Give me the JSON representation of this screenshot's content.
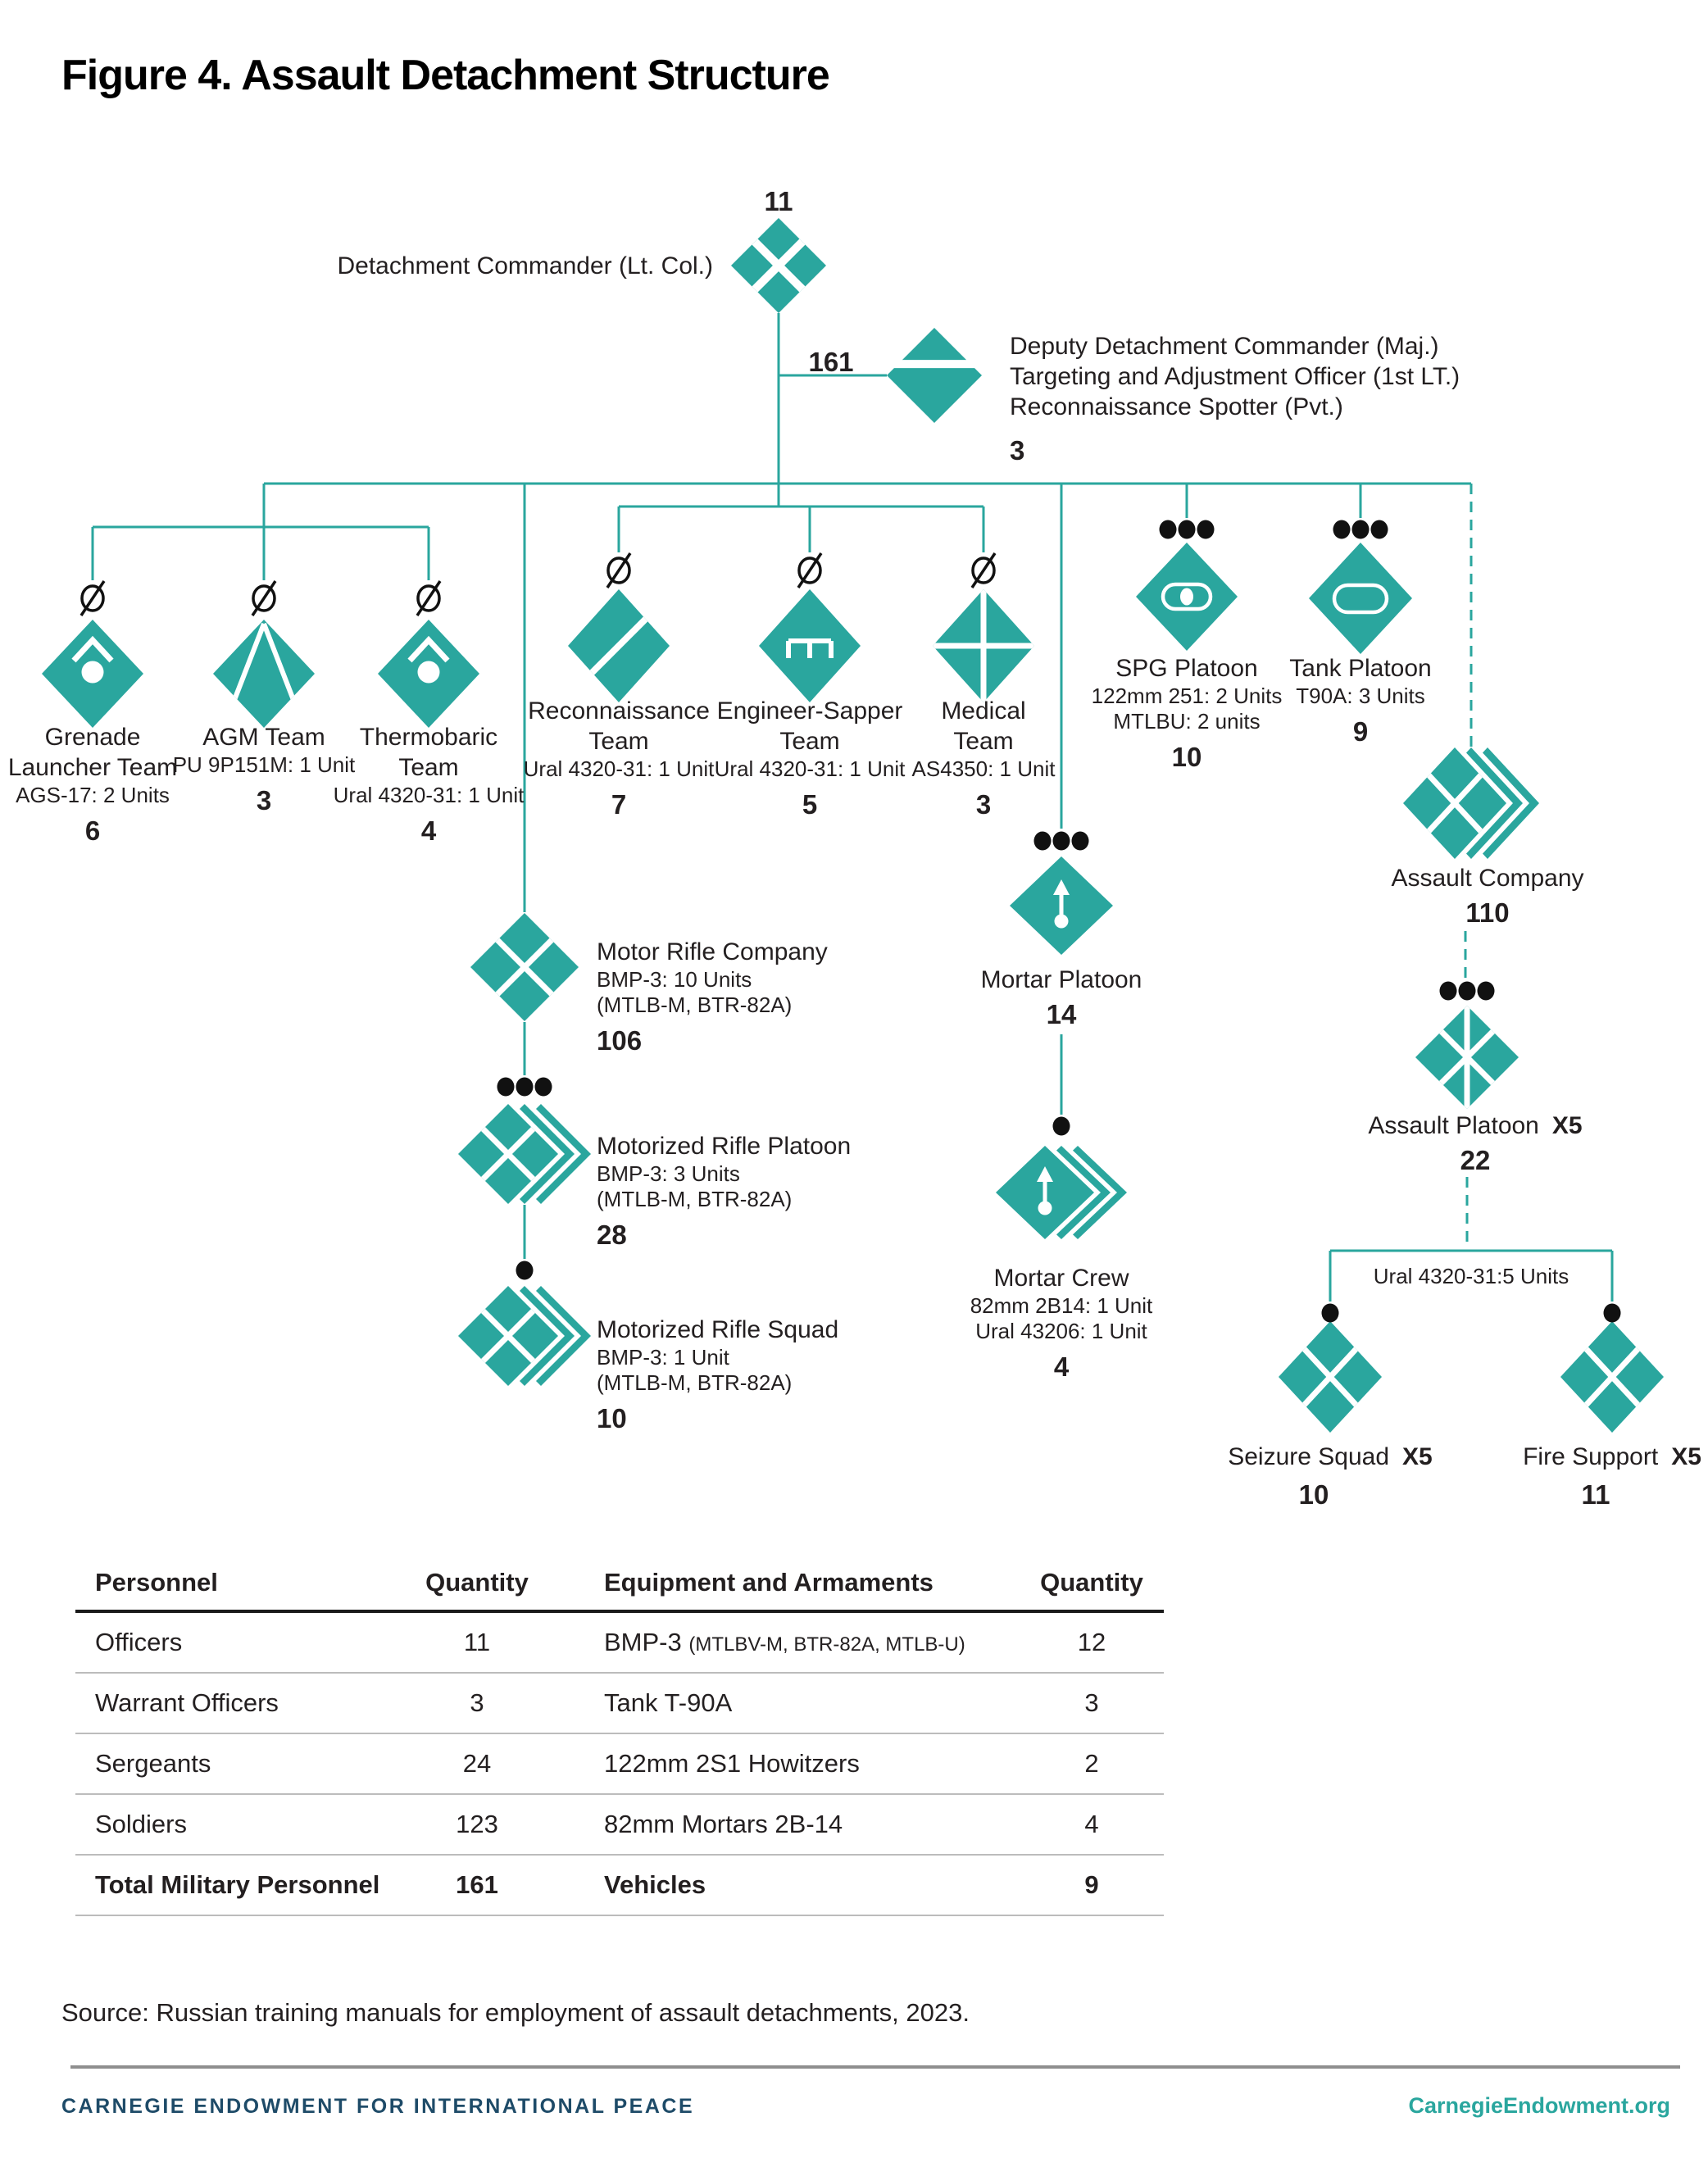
{
  "title": "Figure 4. Assault Detachment Structure",
  "colors": {
    "teal": "#2AA69E",
    "navy": "#1E4B68",
    "black": "#231F20"
  },
  "icons": [
    "hq-icon",
    "deputy-split-icon",
    "prohibited-icon",
    "grenade-team-icon",
    "agm-team-icon",
    "thermobaric-team-icon",
    "recon-slash-icon",
    "engineer-icon",
    "medical-cross-icon",
    "spg-icon",
    "tank-icon",
    "infantry-x-icon",
    "mortar-arrow-icon",
    "assault-six-icon",
    "stacked-unit-chevrons",
    "echelon-dots"
  ],
  "chart": {
    "commander": {
      "count": "11",
      "label": "Detachment Commander (Lt. Col.)"
    },
    "link_count": "161",
    "deputy": {
      "line1": "Deputy Detachment Commander (Maj.)",
      "line2": "Targeting and Adjustment Officer (1st LT.)",
      "line3": "Reconnaissance Spotter (Pvt.)",
      "count": "3"
    },
    "units": {
      "grenade": {
        "name1": "Grenade",
        "name2": "Launcher Team",
        "sub1": "AGS-17: 2 Units",
        "count": "6"
      },
      "agm": {
        "name1": "AGM Team",
        "sub1": "PU 9P151M: 1 Unit",
        "count": "3"
      },
      "thermobaric": {
        "name1": "Thermobaric",
        "name2": "Team",
        "sub1": "Ural 4320-31: 1 Unit",
        "count": "4"
      },
      "recon": {
        "name1": "Reconnaissance",
        "name2": "Team",
        "sub1": "Ural 4320-31: 1 Unit",
        "count": "7"
      },
      "engineer": {
        "name1": "Engineer-Sapper",
        "name2": "Team",
        "sub1": "Ural 4320-31: 1 Unit",
        "count": "5"
      },
      "medical": {
        "name1": "Medical",
        "name2": "Team",
        "sub1": "AS4350: 1 Unit",
        "count": "3"
      },
      "spg": {
        "name1": "SPG Platoon",
        "sub1": "122mm 251: 2 Units",
        "sub2": "MTLBU: 2 units",
        "count": "10"
      },
      "tank": {
        "name1": "Tank Platoon",
        "sub1": "T90A: 3 Units",
        "count": "9"
      },
      "motor_company": {
        "name1": "Motor Rifle Company",
        "sub1": "BMP-3: 10 Units",
        "sub2": "(MTLB-M, BTR-82A)",
        "count": "106"
      },
      "motor_platoon": {
        "name1": "Motorized Rifle Platoon",
        "sub1": "BMP-3: 3 Units",
        "sub2": "(MTLB-M, BTR-82A)",
        "count": "28"
      },
      "motor_squad": {
        "name1": "Motorized Rifle Squad",
        "sub1": "BMP-3: 1 Unit",
        "sub2": "(MTLB-M, BTR-82A)",
        "count": "10"
      },
      "mortar_platoon": {
        "name1": "Mortar Platoon",
        "count": "14"
      },
      "mortar_crew": {
        "name1": "Mortar Crew",
        "sub1": "82mm 2B14: 1 Unit",
        "sub2": "Ural 43206: 1 Unit",
        "count": "4"
      },
      "assault_company": {
        "name1": "Assault Company",
        "count": "110"
      },
      "assault_platoon": {
        "name1": "Assault Platoon",
        "mult": "X5",
        "count": "22"
      },
      "bracket_label": "Ural 4320-31:5 Units",
      "seizure": {
        "name1": "Seizure Squad",
        "mult": "X5",
        "count": "10"
      },
      "fire_support": {
        "name1": "Fire Support",
        "mult": "X5",
        "count": "11"
      }
    }
  },
  "table": {
    "headers": [
      "Personnel",
      "Quantity",
      "Equipment and Armaments",
      "Quantity"
    ],
    "rows": [
      {
        "personnel": "Officers",
        "pq": "11",
        "equipment": "BMP-3",
        "equipment_paren": "(MTLBV-M, BTR-82A, MTLB-U)",
        "eq": "12"
      },
      {
        "personnel": "Warrant Officers",
        "pq": "3",
        "equipment": "Tank T-90A",
        "equipment_paren": "",
        "eq": "3"
      },
      {
        "personnel": "Sergeants",
        "pq": "24",
        "equipment": "122mm 2S1 Howitzers",
        "equipment_paren": "",
        "eq": "2"
      },
      {
        "personnel": "Soldiers",
        "pq": "123",
        "equipment": "82mm Mortars 2B-14",
        "equipment_paren": "",
        "eq": "4"
      }
    ],
    "total_row": {
      "personnel": "Total Military Personnel",
      "pq": "161",
      "equipment": "Vehicles",
      "eq": "9"
    }
  },
  "source": "Source: Russian training manuals for employment of assault detachments, 2023.",
  "footer": {
    "left": "CARNEGIE ENDOWMENT FOR INTERNATIONAL PEACE",
    "right": "CarnegieEndowment.org"
  }
}
